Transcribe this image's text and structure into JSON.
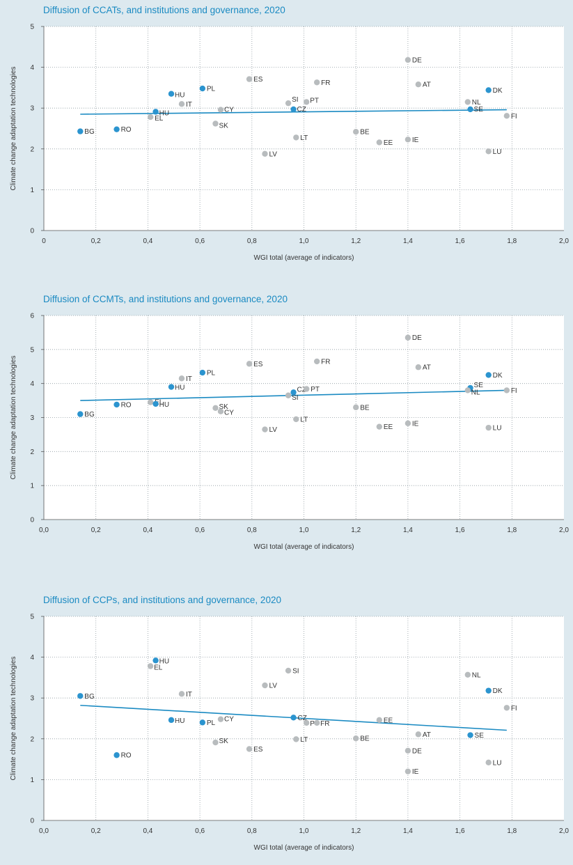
{
  "colors": {
    "background": "#dde9ef",
    "plot_background": "#ffffff",
    "title": "#1a8ac2",
    "highlight_point": "#2b94cf",
    "regular_point": "#b8bcbe",
    "trendline": "#1a8ac2",
    "label_text": "#333333",
    "grid": "#8e9aa0"
  },
  "chart_data": [
    {
      "type": "scatter",
      "title": "Diffusion of CCATs, and institutions and governance, 2020",
      "xlabel": "WGI total (average of indicators)",
      "ylabel": "Climate change adaptation technologies",
      "xlim": [
        0,
        2.0
      ],
      "ylim": [
        0,
        5
      ],
      "x_ticks": [
        "0",
        "0,2",
        "0,4",
        "0,6",
        "0,8",
        "1,0",
        "1,2",
        "1,4",
        "1,6",
        "1,8",
        "2,0"
      ],
      "y_ticks": [
        "0",
        "1",
        "2",
        "3",
        "4",
        "5"
      ],
      "grid": "dotted",
      "trendline": {
        "x": [
          0.14,
          1.78
        ],
        "y": [
          2.85,
          2.96
        ]
      },
      "points": [
        {
          "label": "BG",
          "x": 0.14,
          "y": 2.43,
          "highlight": true
        },
        {
          "label": "RO",
          "x": 0.28,
          "y": 2.48,
          "highlight": true
        },
        {
          "label": "EL",
          "x": 0.41,
          "y": 2.78,
          "highlight": false
        },
        {
          "label": "HU",
          "x": 0.43,
          "y": 2.91,
          "highlight": true
        },
        {
          "label": "HU",
          "x": 0.49,
          "y": 3.35,
          "highlight": true
        },
        {
          "label": "IT",
          "x": 0.53,
          "y": 3.1,
          "highlight": false
        },
        {
          "label": "PL",
          "x": 0.61,
          "y": 3.48,
          "highlight": true
        },
        {
          "label": "CY",
          "x": 0.68,
          "y": 2.96,
          "highlight": false
        },
        {
          "label": "SK",
          "x": 0.66,
          "y": 2.62,
          "highlight": false
        },
        {
          "label": "ES",
          "x": 0.79,
          "y": 3.71,
          "highlight": false
        },
        {
          "label": "LV",
          "x": 0.85,
          "y": 1.88,
          "highlight": false
        },
        {
          "label": "SI",
          "x": 0.94,
          "y": 3.12,
          "highlight": false
        },
        {
          "label": "CZ",
          "x": 0.96,
          "y": 2.97,
          "highlight": true
        },
        {
          "label": "PT",
          "x": 1.01,
          "y": 3.15,
          "highlight": false
        },
        {
          "label": "LT",
          "x": 0.97,
          "y": 2.28,
          "highlight": false
        },
        {
          "label": "FR",
          "x": 1.05,
          "y": 3.63,
          "highlight": false
        },
        {
          "label": "BE",
          "x": 1.2,
          "y": 2.42,
          "highlight": false
        },
        {
          "label": "EE",
          "x": 1.29,
          "y": 2.16,
          "highlight": false
        },
        {
          "label": "IE",
          "x": 1.4,
          "y": 2.23,
          "highlight": false
        },
        {
          "label": "DE",
          "x": 1.4,
          "y": 4.18,
          "highlight": false
        },
        {
          "label": "AT",
          "x": 1.44,
          "y": 3.58,
          "highlight": false
        },
        {
          "label": "NL",
          "x": 1.63,
          "y": 3.15,
          "highlight": false
        },
        {
          "label": "SE",
          "x": 1.64,
          "y": 2.97,
          "highlight": true
        },
        {
          "label": "DK",
          "x": 1.71,
          "y": 3.44,
          "highlight": true
        },
        {
          "label": "LU",
          "x": 1.71,
          "y": 1.94,
          "highlight": false
        },
        {
          "label": "FI",
          "x": 1.78,
          "y": 2.81,
          "highlight": false
        }
      ]
    },
    {
      "type": "scatter",
      "title": "Diffusion of CCMTs, and institutions and governance, 2020",
      "xlabel": "WGI total (average of indicators)",
      "ylabel": "Climate change adaptation technologies",
      "xlim": [
        0,
        2.0
      ],
      "ylim": [
        0,
        6
      ],
      "x_ticks": [
        "0,0",
        "0,2",
        "0,4",
        "0,6",
        "0,8",
        "1,0",
        "1,2",
        "1,4",
        "1,6",
        "1,8",
        "2,0"
      ],
      "y_ticks": [
        "0",
        "1",
        "2",
        "3",
        "4",
        "5",
        "6"
      ],
      "grid": "dotted",
      "trendline": {
        "x": [
          0.14,
          1.78
        ],
        "y": [
          3.5,
          3.8
        ]
      },
      "points": [
        {
          "label": "BG",
          "x": 0.14,
          "y": 3.1,
          "highlight": true
        },
        {
          "label": "RO",
          "x": 0.28,
          "y": 3.38,
          "highlight": true
        },
        {
          "label": "EL",
          "x": 0.41,
          "y": 3.45,
          "highlight": false
        },
        {
          "label": "HU",
          "x": 0.43,
          "y": 3.4,
          "highlight": true
        },
        {
          "label": "HU",
          "x": 0.49,
          "y": 3.9,
          "highlight": true
        },
        {
          "label": "IT",
          "x": 0.53,
          "y": 4.15,
          "highlight": false
        },
        {
          "label": "PL",
          "x": 0.61,
          "y": 4.32,
          "highlight": true
        },
        {
          "label": "SK",
          "x": 0.66,
          "y": 3.28,
          "highlight": false
        },
        {
          "label": "CY",
          "x": 0.68,
          "y": 3.18,
          "highlight": false
        },
        {
          "label": "ES",
          "x": 0.79,
          "y": 4.58,
          "highlight": false
        },
        {
          "label": "LV",
          "x": 0.85,
          "y": 2.65,
          "highlight": false
        },
        {
          "label": "SI",
          "x": 0.94,
          "y": 3.65,
          "highlight": false
        },
        {
          "label": "CZ",
          "x": 0.96,
          "y": 3.74,
          "highlight": true
        },
        {
          "label": "PT",
          "x": 1.01,
          "y": 3.84,
          "highlight": false
        },
        {
          "label": "LT",
          "x": 0.97,
          "y": 2.95,
          "highlight": false
        },
        {
          "label": "FR",
          "x": 1.05,
          "y": 4.65,
          "highlight": false
        },
        {
          "label": "BE",
          "x": 1.2,
          "y": 3.3,
          "highlight": false
        },
        {
          "label": "EE",
          "x": 1.29,
          "y": 2.73,
          "highlight": false
        },
        {
          "label": "IE",
          "x": 1.4,
          "y": 2.83,
          "highlight": false
        },
        {
          "label": "DE",
          "x": 1.4,
          "y": 5.35,
          "highlight": false
        },
        {
          "label": "AT",
          "x": 1.44,
          "y": 4.48,
          "highlight": false
        },
        {
          "label": "SE",
          "x": 1.64,
          "y": 3.87,
          "highlight": true
        },
        {
          "label": "NL",
          "x": 1.63,
          "y": 3.8,
          "highlight": false
        },
        {
          "label": "DK",
          "x": 1.71,
          "y": 4.25,
          "highlight": true
        },
        {
          "label": "LU",
          "x": 1.71,
          "y": 2.7,
          "highlight": false
        },
        {
          "label": "FI",
          "x": 1.78,
          "y": 3.8,
          "highlight": false
        }
      ]
    },
    {
      "type": "scatter",
      "title": "Diffusion of CCPs, and institutions and governance, 2020",
      "xlabel": "WGI total (average of indicators)",
      "ylabel": "Climate change adaptation technologies",
      "xlim": [
        0,
        2.0
      ],
      "ylim": [
        0,
        5
      ],
      "x_ticks": [
        "0,0",
        "0,2",
        "0,4",
        "0,6",
        "0,8",
        "1,0",
        "1,2",
        "1,4",
        "1,6",
        "1,8",
        "2,0"
      ],
      "y_ticks": [
        "0",
        "1",
        "2",
        "3",
        "4",
        "5"
      ],
      "grid": "dotted",
      "trendline": {
        "x": [
          0.14,
          1.78
        ],
        "y": [
          2.82,
          2.21
        ]
      },
      "points": [
        {
          "label": "BG",
          "x": 0.14,
          "y": 3.05,
          "highlight": true
        },
        {
          "label": "RO",
          "x": 0.28,
          "y": 1.6,
          "highlight": true
        },
        {
          "label": "HU",
          "x": 0.43,
          "y": 3.92,
          "highlight": true
        },
        {
          "label": "EL",
          "x": 0.41,
          "y": 3.78,
          "highlight": false
        },
        {
          "label": "HU",
          "x": 0.49,
          "y": 2.46,
          "highlight": true
        },
        {
          "label": "IT",
          "x": 0.53,
          "y": 3.1,
          "highlight": false
        },
        {
          "label": "PL",
          "x": 0.61,
          "y": 2.4,
          "highlight": true
        },
        {
          "label": "CY",
          "x": 0.68,
          "y": 2.48,
          "highlight": false
        },
        {
          "label": "SK",
          "x": 0.66,
          "y": 1.91,
          "highlight": false
        },
        {
          "label": "ES",
          "x": 0.79,
          "y": 1.75,
          "highlight": false
        },
        {
          "label": "LV",
          "x": 0.85,
          "y": 3.31,
          "highlight": false
        },
        {
          "label": "SI",
          "x": 0.94,
          "y": 3.67,
          "highlight": false
        },
        {
          "label": "CZ",
          "x": 0.96,
          "y": 2.52,
          "highlight": true
        },
        {
          "label": "PT",
          "x": 1.01,
          "y": 2.39,
          "highlight": false
        },
        {
          "label": "FR",
          "x": 1.05,
          "y": 2.39,
          "highlight": false
        },
        {
          "label": "LT",
          "x": 0.97,
          "y": 1.99,
          "highlight": false
        },
        {
          "label": "BE",
          "x": 1.2,
          "y": 2.01,
          "highlight": false
        },
        {
          "label": "EE",
          "x": 1.29,
          "y": 2.46,
          "highlight": false
        },
        {
          "label": "AT",
          "x": 1.44,
          "y": 2.11,
          "highlight": false
        },
        {
          "label": "DE",
          "x": 1.4,
          "y": 1.71,
          "highlight": false
        },
        {
          "label": "IE",
          "x": 1.4,
          "y": 1.2,
          "highlight": false
        },
        {
          "label": "NL",
          "x": 1.63,
          "y": 3.57,
          "highlight": false
        },
        {
          "label": "SE",
          "x": 1.64,
          "y": 2.09,
          "highlight": true
        },
        {
          "label": "DK",
          "x": 1.71,
          "y": 3.18,
          "highlight": true
        },
        {
          "label": "LU",
          "x": 1.71,
          "y": 1.42,
          "highlight": false
        },
        {
          "label": "FI",
          "x": 1.78,
          "y": 2.76,
          "highlight": false
        }
      ]
    }
  ]
}
